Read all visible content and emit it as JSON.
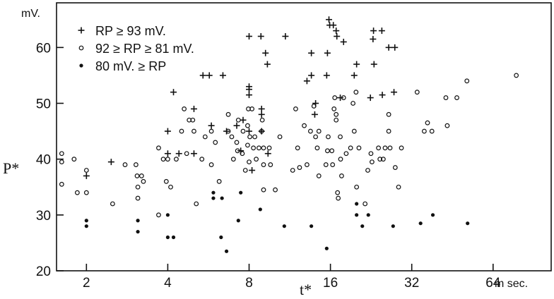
{
  "chart_data": {
    "type": "scatter",
    "xlabel": "t*",
    "ylabel": "P*",
    "y_unit": "mV.",
    "x_unit": "m sec.",
    "x_scale": "log2",
    "xlim": [
      1.55,
      105
    ],
    "ylim": [
      20,
      68
    ],
    "x_ticks": [
      2,
      4,
      8,
      16,
      32,
      64
    ],
    "y_ticks": [
      20,
      30,
      40,
      50,
      60
    ],
    "grid": false,
    "legend": "top-left",
    "series": [
      {
        "name": "RP ≥ 93 mV.",
        "marker": "plus",
        "points": [
          [
            2.0,
            37
          ],
          [
            2.47,
            39.5
          ],
          [
            4.0,
            45
          ],
          [
            4.0,
            41
          ],
          [
            4.4,
            41
          ],
          [
            4.2,
            52
          ],
          [
            5.0,
            49
          ],
          [
            5.0,
            41
          ],
          [
            5.4,
            55
          ],
          [
            5.7,
            55
          ],
          [
            5.8,
            46
          ],
          [
            6.4,
            55
          ],
          [
            6.6,
            45
          ],
          [
            7.2,
            46
          ],
          [
            7.45,
            41.5
          ],
          [
            7.6,
            47
          ],
          [
            8.0,
            62
          ],
          [
            8.0,
            53
          ],
          [
            8.0,
            52.5
          ],
          [
            8.0,
            51.5
          ],
          [
            8.0,
            45
          ],
          [
            8.2,
            38
          ],
          [
            8.85,
            62
          ],
          [
            8.9,
            49
          ],
          [
            8.9,
            48
          ],
          [
            8.9,
            45
          ],
          [
            9.2,
            59
          ],
          [
            9.35,
            57
          ],
          [
            9.4,
            41
          ],
          [
            10.9,
            62
          ],
          [
            13.1,
            54
          ],
          [
            13.6,
            55
          ],
          [
            13.6,
            59
          ],
          [
            14.0,
            48
          ],
          [
            14.1,
            50
          ],
          [
            15.5,
            55
          ],
          [
            15.6,
            59
          ],
          [
            15.9,
            64
          ],
          [
            15.8,
            65
          ],
          [
            16.4,
            64
          ],
          [
            16.8,
            63
          ],
          [
            16.9,
            62
          ],
          [
            17.4,
            51
          ],
          [
            17.9,
            61
          ],
          [
            19.6,
            55
          ],
          [
            20.0,
            57
          ],
          [
            22.5,
            51
          ],
          [
            23.1,
            63
          ],
          [
            23.0,
            61.5
          ],
          [
            23.2,
            57
          ],
          [
            24.8,
            63
          ],
          [
            24.9,
            51.5
          ],
          [
            26.3,
            60
          ],
          [
            27.5,
            52
          ],
          [
            27.7,
            60
          ]
        ]
      },
      {
        "name": "92 ≥ RP ≥ 81 mV.",
        "marker": "circle",
        "points": [
          [
            1.62,
            41
          ],
          [
            1.62,
            39.5
          ],
          [
            1.62,
            35.5
          ],
          [
            1.8,
            40
          ],
          [
            1.85,
            34
          ],
          [
            2.0,
            38
          ],
          [
            2.0,
            34
          ],
          [
            2.5,
            32
          ],
          [
            2.78,
            39
          ],
          [
            3.05,
            39
          ],
          [
            3.08,
            37
          ],
          [
            3.1,
            35
          ],
          [
            3.1,
            33
          ],
          [
            3.2,
            37
          ],
          [
            3.25,
            36
          ],
          [
            3.7,
            30
          ],
          [
            3.7,
            42
          ],
          [
            3.85,
            40
          ],
          [
            4.0,
            40
          ],
          [
            3.95,
            36
          ],
          [
            4.1,
            35
          ],
          [
            4.3,
            40
          ],
          [
            4.5,
            45
          ],
          [
            4.6,
            49
          ],
          [
            4.7,
            41
          ],
          [
            4.8,
            47
          ],
          [
            4.95,
            47
          ],
          [
            5.0,
            45
          ],
          [
            5.1,
            32
          ],
          [
            5.35,
            40
          ],
          [
            5.5,
            44
          ],
          [
            5.8,
            45
          ],
          [
            5.8,
            39
          ],
          [
            6.0,
            43
          ],
          [
            6.2,
            36
          ],
          [
            6.7,
            45
          ],
          [
            6.9,
            44
          ],
          [
            6.7,
            48
          ],
          [
            7.0,
            40
          ],
          [
            7.2,
            43
          ],
          [
            7.25,
            41.5
          ],
          [
            7.3,
            47
          ],
          [
            7.6,
            45
          ],
          [
            7.55,
            41
          ],
          [
            7.75,
            38
          ],
          [
            7.9,
            46
          ],
          [
            7.9,
            42.5
          ],
          [
            7.95,
            49
          ],
          [
            8.0,
            39.5
          ],
          [
            8.05,
            44
          ],
          [
            8.3,
            42
          ],
          [
            8.2,
            49
          ],
          [
            8.4,
            44
          ],
          [
            8.5,
            40
          ],
          [
            8.7,
            42
          ],
          [
            8.9,
            45
          ],
          [
            8.95,
            47
          ],
          [
            9.05,
            42
          ],
          [
            9.05,
            39
          ],
          [
            9.05,
            34.5
          ],
          [
            9.5,
            42
          ],
          [
            9.6,
            39
          ],
          [
            10.0,
            34.5
          ],
          [
            10.4,
            44
          ],
          [
            11.6,
            38
          ],
          [
            11.9,
            49
          ],
          [
            12.1,
            42
          ],
          [
            12.3,
            38.5
          ],
          [
            12.8,
            46
          ],
          [
            13.1,
            39
          ],
          [
            13.5,
            45
          ],
          [
            13.9,
            49.5
          ],
          [
            14.1,
            44
          ],
          [
            14.3,
            42
          ],
          [
            14.5,
            37
          ],
          [
            14.5,
            45
          ],
          [
            15.4,
            39
          ],
          [
            15.6,
            41.5
          ],
          [
            15.7,
            44
          ],
          [
            16.2,
            41.5
          ],
          [
            16.3,
            39
          ],
          [
            16.5,
            49
          ],
          [
            16.6,
            51
          ],
          [
            16.8,
            48
          ],
          [
            16.8,
            47
          ],
          [
            17.0,
            34
          ],
          [
            17.1,
            33
          ],
          [
            17.4,
            44
          ],
          [
            17.45,
            40
          ],
          [
            17.6,
            37
          ],
          [
            17.9,
            51
          ],
          [
            18.3,
            41
          ],
          [
            19.0,
            42
          ],
          [
            19.4,
            50
          ],
          [
            19.6,
            45
          ],
          [
            19.9,
            52
          ],
          [
            20.0,
            35
          ],
          [
            20.4,
            42
          ],
          [
            21.5,
            32
          ],
          [
            22.0,
            38
          ],
          [
            22.6,
            41
          ],
          [
            22.8,
            39.5
          ],
          [
            24.1,
            42
          ],
          [
            24.4,
            40
          ],
          [
            25.1,
            40
          ],
          [
            25.5,
            42
          ],
          [
            26.3,
            48
          ],
          [
            26.3,
            45
          ],
          [
            26.6,
            42
          ],
          [
            27.8,
            38.5
          ],
          [
            28.6,
            35
          ],
          [
            29.3,
            42
          ],
          [
            33.5,
            52
          ],
          [
            35.6,
            45
          ],
          [
            36.6,
            46.5
          ],
          [
            38.0,
            45
          ],
          [
            42.8,
            51
          ],
          [
            43.3,
            46
          ],
          [
            47.0,
            51
          ],
          [
            51.2,
            54
          ],
          [
            78.0,
            55
          ]
        ]
      },
      {
        "name": "80 mV. ≥ RP",
        "marker": "dot",
        "points": [
          [
            2.0,
            29
          ],
          [
            2.0,
            28
          ],
          [
            3.1,
            29
          ],
          [
            3.1,
            27
          ],
          [
            4.0,
            30
          ],
          [
            4.0,
            26
          ],
          [
            4.2,
            26
          ],
          [
            5.9,
            34
          ],
          [
            5.9,
            33
          ],
          [
            6.35,
            33
          ],
          [
            6.3,
            26
          ],
          [
            6.6,
            23.5
          ],
          [
            7.3,
            29
          ],
          [
            7.45,
            34
          ],
          [
            8.8,
            31
          ],
          [
            10.8,
            28
          ],
          [
            13.6,
            28
          ],
          [
            15.5,
            24
          ],
          [
            20.0,
            32
          ],
          [
            20.0,
            30
          ],
          [
            21.0,
            28
          ],
          [
            22.1,
            30
          ],
          [
            27.3,
            28
          ],
          [
            34.5,
            28.5
          ],
          [
            38.3,
            30
          ],
          [
            51.5,
            28.5
          ]
        ]
      }
    ]
  }
}
